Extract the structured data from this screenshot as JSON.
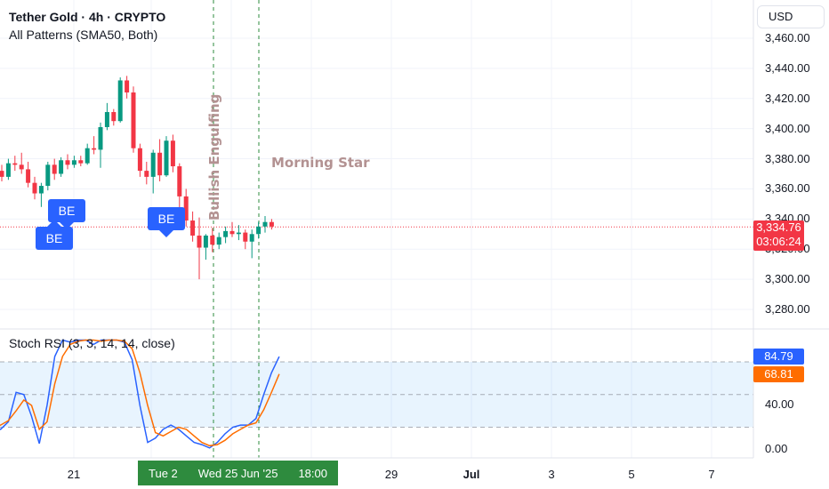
{
  "header": {
    "title": "Tether Gold · 4h · CRYPTO",
    "indicator": "All Patterns (SMA50, Both)"
  },
  "currency_button": "USD",
  "price_axis": {
    "ticks": [
      "3,460.00",
      "3,440.00",
      "3,420.00",
      "3,400.00",
      "3,380.00",
      "3,360.00",
      "3,340.00",
      "3,320.00",
      "3,300.00",
      "3,280.00"
    ],
    "current_price": "3,334.76",
    "countdown": "03:06:24",
    "tag_color": "#f23645"
  },
  "rsi_panel": {
    "title": "Stoch RSI (3, 3, 14, 14, close)",
    "ticks": [
      "40.00",
      "0.00"
    ],
    "k_value": "84.79",
    "d_value": "68.81",
    "k_color": "#2962ff",
    "d_color": "#ff6d00",
    "band_color": "#2196f3"
  },
  "time_axis": {
    "ticks": [
      "21",
      "29",
      "Jul",
      "3",
      "5",
      "7"
    ],
    "highlight": {
      "left": "Tue 2",
      "date": "Wed 25 Jun '25",
      "time": "18:00"
    },
    "highlight_color": "#2e8b3e"
  },
  "patterns": {
    "bullish_engulfing": "Bullish Engulfing",
    "morning_star": "Morning Star",
    "be_labels": [
      "BE",
      "BE",
      "BE"
    ]
  },
  "colors": {
    "up": "#089981",
    "down": "#f23645"
  },
  "chart_data": [
    {
      "type": "candlestick",
      "title": "Tether Gold · 4h · CRYPTO",
      "ylim": [
        3270,
        3470
      ],
      "candles": [
        {
          "o": 3372,
          "h": 3376,
          "l": 3365,
          "c": 3368
        },
        {
          "o": 3368,
          "h": 3380,
          "l": 3366,
          "c": 3377
        },
        {
          "o": 3377,
          "h": 3382,
          "l": 3372,
          "c": 3376
        },
        {
          "o": 3376,
          "h": 3384,
          "l": 3370,
          "c": 3373
        },
        {
          "o": 3373,
          "h": 3378,
          "l": 3361,
          "c": 3364
        },
        {
          "o": 3364,
          "h": 3368,
          "l": 3353,
          "c": 3357
        },
        {
          "o": 3357,
          "h": 3364,
          "l": 3348,
          "c": 3362
        },
        {
          "o": 3362,
          "h": 3378,
          "l": 3359,
          "c": 3376
        },
        {
          "o": 3376,
          "h": 3380,
          "l": 3366,
          "c": 3370
        },
        {
          "o": 3370,
          "h": 3381,
          "l": 3368,
          "c": 3379
        },
        {
          "o": 3379,
          "h": 3383,
          "l": 3373,
          "c": 3376
        },
        {
          "o": 3376,
          "h": 3382,
          "l": 3374,
          "c": 3379
        },
        {
          "o": 3379,
          "h": 3382,
          "l": 3375,
          "c": 3377
        },
        {
          "o": 3377,
          "h": 3390,
          "l": 3376,
          "c": 3387
        },
        {
          "o": 3387,
          "h": 3395,
          "l": 3383,
          "c": 3386
        },
        {
          "o": 3386,
          "h": 3404,
          "l": 3374,
          "c": 3401
        },
        {
          "o": 3401,
          "h": 3417,
          "l": 3399,
          "c": 3411
        },
        {
          "o": 3411,
          "h": 3413,
          "l": 3402,
          "c": 3405
        },
        {
          "o": 3405,
          "h": 3434,
          "l": 3404,
          "c": 3432
        },
        {
          "o": 3432,
          "h": 3435,
          "l": 3420,
          "c": 3424
        },
        {
          "o": 3424,
          "h": 3428,
          "l": 3384,
          "c": 3387
        },
        {
          "o": 3387,
          "h": 3390,
          "l": 3368,
          "c": 3372
        },
        {
          "o": 3372,
          "h": 3378,
          "l": 3363,
          "c": 3368
        },
        {
          "o": 3368,
          "h": 3386,
          "l": 3357,
          "c": 3384
        },
        {
          "o": 3384,
          "h": 3393,
          "l": 3365,
          "c": 3369
        },
        {
          "o": 3369,
          "h": 3395,
          "l": 3368,
          "c": 3392
        },
        {
          "o": 3392,
          "h": 3396,
          "l": 3371,
          "c": 3375
        },
        {
          "o": 3375,
          "h": 3377,
          "l": 3343,
          "c": 3355
        },
        {
          "o": 3355,
          "h": 3360,
          "l": 3335,
          "c": 3339
        },
        {
          "o": 3339,
          "h": 3345,
          "l": 3325,
          "c": 3329
        },
        {
          "o": 3329,
          "h": 3341,
          "l": 3300,
          "c": 3321
        },
        {
          "o": 3321,
          "h": 3330,
          "l": 3313,
          "c": 3329
        },
        {
          "o": 3329,
          "h": 3334,
          "l": 3318,
          "c": 3323
        },
        {
          "o": 3323,
          "h": 3331,
          "l": 3320,
          "c": 3328
        },
        {
          "o": 3328,
          "h": 3335,
          "l": 3324,
          "c": 3332
        },
        {
          "o": 3332,
          "h": 3338,
          "l": 3328,
          "c": 3330
        },
        {
          "o": 3330,
          "h": 3336,
          "l": 3326,
          "c": 3331
        },
        {
          "o": 3331,
          "h": 3333,
          "l": 3320,
          "c": 3325
        },
        {
          "o": 3325,
          "h": 3333,
          "l": 3314,
          "c": 3330
        },
        {
          "o": 3330,
          "h": 3338,
          "l": 3327,
          "c": 3335
        },
        {
          "o": 3335,
          "h": 3342,
          "l": 3331,
          "c": 3338
        },
        {
          "o": 3338,
          "h": 3340,
          "l": 3333,
          "c": 3335
        }
      ]
    },
    {
      "type": "line",
      "title": "Stoch RSI (3, 3, 14, 14, close)",
      "ylim": [
        0,
        100
      ],
      "series": [
        {
          "name": "K",
          "values": [
            20,
            18,
            25,
            52,
            50,
            30,
            5,
            40,
            85,
            100,
            98,
            100,
            100,
            96,
            100,
            100,
            100,
            98,
            82,
            40,
            6,
            10,
            18,
            22,
            18,
            12,
            6,
            4,
            1,
            6,
            14,
            20,
            22,
            22,
            28,
            50,
            70,
            84.79
          ]
        },
        {
          "name": "D",
          "values": [
            20,
            22,
            26,
            35,
            45,
            40,
            18,
            25,
            60,
            85,
            96,
            99,
            100,
            100,
            99,
            100,
            100,
            99,
            92,
            70,
            40,
            15,
            12,
            16,
            20,
            18,
            12,
            6,
            3,
            4,
            8,
            14,
            18,
            22,
            24,
            36,
            52,
            68.81
          ]
        }
      ],
      "reference_lines": [
        80,
        50,
        20
      ]
    }
  ]
}
